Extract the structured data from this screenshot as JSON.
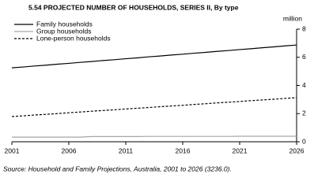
{
  "chart_data": {
    "type": "line",
    "title": "5.54  PROJECTED NUMBER OF HOUSEHOLDS, SERIES II, By type",
    "y_label": "million",
    "source": "Source: Household and Family Projections, Australia, 2001 to 2026 (3236.0).",
    "x": [
      2001,
      2002,
      2003,
      2004,
      2005,
      2006,
      2007,
      2008,
      2009,
      2010,
      2011,
      2012,
      2013,
      2014,
      2015,
      2016,
      2017,
      2018,
      2019,
      2020,
      2021,
      2022,
      2023,
      2024,
      2025,
      2026
    ],
    "series": [
      {
        "name": "Family households",
        "color": "#000000",
        "dashed": false,
        "values": [
          5.25,
          5.31,
          5.38,
          5.44,
          5.51,
          5.57,
          5.64,
          5.7,
          5.77,
          5.83,
          5.9,
          5.96,
          6.03,
          6.09,
          6.16,
          6.22,
          6.29,
          6.35,
          6.42,
          6.48,
          6.55,
          6.61,
          6.68,
          6.74,
          6.81,
          6.87
        ]
      },
      {
        "name": "Group households",
        "color": "#a6a6a6",
        "dashed": false,
        "values": [
          0.33,
          0.33,
          0.33,
          0.33,
          0.33,
          0.33,
          0.33,
          0.37,
          0.37,
          0.37,
          0.37,
          0.37,
          0.38,
          0.38,
          0.38,
          0.38,
          0.38,
          0.38,
          0.38,
          0.38,
          0.39,
          0.39,
          0.39,
          0.39,
          0.39,
          0.39
        ]
      },
      {
        "name": "Lone-person households",
        "color": "#000000",
        "dashed": true,
        "values": [
          1.79,
          1.84,
          1.9,
          1.95,
          2.0,
          2.06,
          2.11,
          2.17,
          2.22,
          2.27,
          2.33,
          2.38,
          2.43,
          2.49,
          2.54,
          2.59,
          2.65,
          2.7,
          2.76,
          2.81,
          2.86,
          2.92,
          2.97,
          3.02,
          3.08,
          3.13
        ]
      }
    ],
    "xlim": [
      2001,
      2026
    ],
    "xticks": [
      2001,
      2006,
      2011,
      2016,
      2021,
      2026
    ],
    "ylim": [
      0,
      8
    ],
    "yticks": [
      0,
      2,
      4,
      6,
      8
    ],
    "y_axis_side": "right",
    "legend": "upper left"
  }
}
